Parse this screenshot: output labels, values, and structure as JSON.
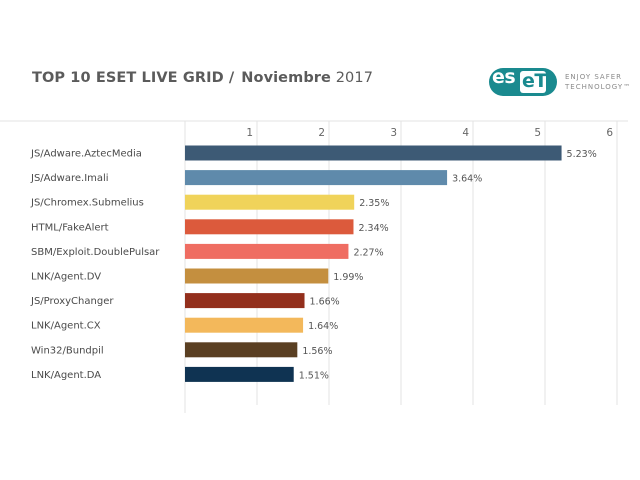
{
  "header": {
    "title_bold": "TOP 10 ESET LIVE GRID /",
    "title_month": "Noviembre",
    "title_year": "2017",
    "logo_text": "eset",
    "logo_text_es": "es",
    "logo_text_et": "eT",
    "tagline_line1": "ENJOY SAFER",
    "tagline_line2": "TECHNOLOGY™"
  },
  "chart_data": {
    "type": "bar",
    "orientation": "horizontal",
    "title": "TOP 10 ESET LIVE GRID / Noviembre 2017",
    "xlabel": "",
    "ylabel": "",
    "xlim": [
      0,
      6
    ],
    "xticks": [
      "1",
      "2",
      "3",
      "4",
      "5",
      "6"
    ],
    "grid": true,
    "categories": [
      "JS/Adware.AztecMedia",
      "JS/Adware.Imali",
      "JS/Chromex.Submelius",
      "HTML/FakeAlert",
      "SBM/Exploit.DoublePulsar",
      "LNK/Agent.DV",
      "JS/ProxyChanger",
      "LNK/Agent.CX",
      "Win32/Bundpil",
      "LNK/Agent.DA"
    ],
    "values": [
      5.23,
      3.64,
      2.35,
      2.34,
      2.27,
      1.99,
      1.66,
      1.64,
      1.56,
      1.51
    ],
    "value_labels": [
      "5.23%",
      "3.64%",
      "2.35%",
      "2.34%",
      "2.27%",
      "1.99%",
      "1.66%",
      "1.64%",
      "1.56%",
      "1.51%"
    ],
    "colors": [
      "#3d5a75",
      "#5f8aab",
      "#f0d35a",
      "#dc5a3c",
      "#ef6d62",
      "#c48f3f",
      "#932f1c",
      "#f3b85b",
      "#5a3f22",
      "#0f3352"
    ]
  },
  "colors": {
    "grid": "#e3e3e3",
    "brand": "#1a8a8f"
  }
}
